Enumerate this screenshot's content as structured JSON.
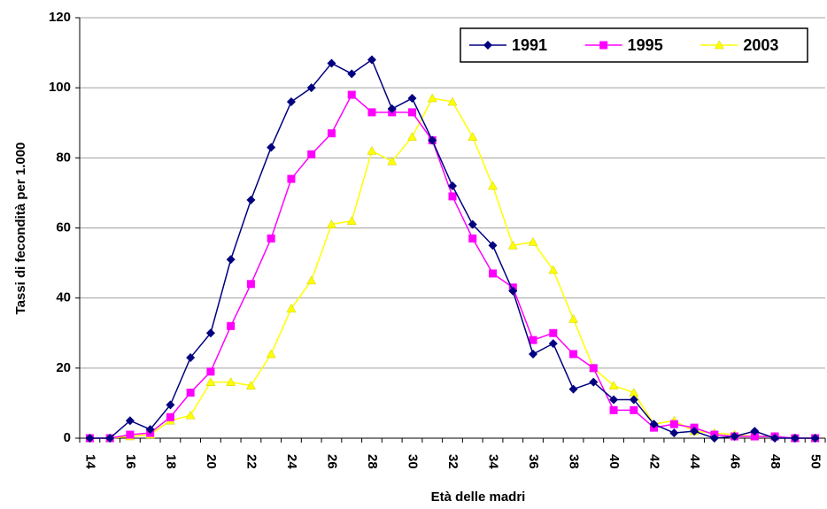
{
  "chart_data": {
    "type": "line",
    "x_label": "Età delle madri",
    "y_label": "Tassi di fecondità per 1.000",
    "categories": [
      14,
      null,
      16,
      null,
      18,
      null,
      20,
      null,
      22,
      null,
      24,
      null,
      26,
      null,
      28,
      null,
      30,
      null,
      32,
      null,
      34,
      null,
      36,
      null,
      38,
      null,
      40,
      null,
      42,
      null,
      44,
      null,
      46,
      null,
      48,
      null,
      50
    ],
    "ylim": [
      0,
      120
    ],
    "yticks": [
      0,
      20,
      40,
      60,
      80,
      100,
      120
    ],
    "grid": true,
    "legend": "top-right",
    "series": [
      {
        "name": "1991",
        "color": "#000080",
        "marker": "diamond",
        "values": [
          0,
          0,
          5,
          2.5,
          9.5,
          23,
          30,
          51,
          68,
          83,
          96,
          100,
          107,
          104,
          108,
          94,
          97,
          85,
          72,
          61,
          55,
          42,
          24,
          27,
          14,
          16,
          11,
          11,
          4,
          1.5,
          2,
          0,
          0.5,
          2,
          0,
          0,
          0
        ]
      },
      {
        "name": "1995",
        "color": "#ff00ff",
        "marker": "square",
        "values": [
          0,
          0,
          1,
          1.5,
          6,
          13,
          19,
          32,
          44,
          57,
          74,
          81,
          87,
          98,
          93,
          93,
          93,
          85,
          69,
          57,
          47,
          43,
          28,
          30,
          24,
          20,
          8,
          8,
          3,
          4,
          3,
          1,
          0.5,
          0.5,
          0.5,
          0,
          0
        ]
      },
      {
        "name": "2003",
        "color": "#ffff00",
        "marker": "triangle",
        "values": [
          0,
          0,
          0.5,
          1,
          5,
          6.5,
          16,
          16,
          15,
          24,
          37,
          45,
          61,
          62,
          82,
          79,
          86,
          97,
          96,
          86,
          72,
          55,
          56,
          48,
          34,
          20,
          15,
          13,
          4,
          5,
          2,
          1.5,
          1,
          0.5,
          0.5,
          0,
          0
        ]
      }
    ]
  }
}
